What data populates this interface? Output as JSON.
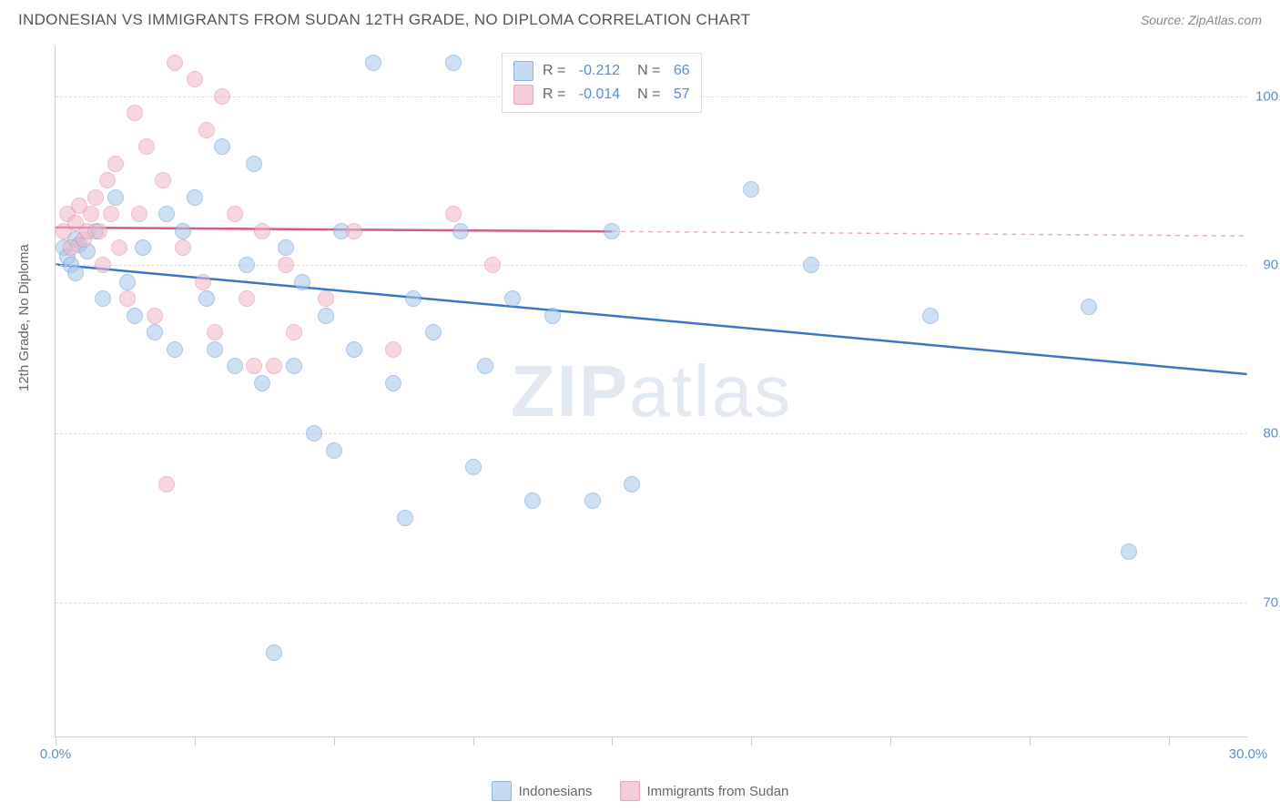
{
  "title": "INDONESIAN VS IMMIGRANTS FROM SUDAN 12TH GRADE, NO DIPLOMA CORRELATION CHART",
  "source": "Source: ZipAtlas.com",
  "y_axis_label": "12th Grade, No Diploma",
  "watermark_bold": "ZIP",
  "watermark_light": "atlas",
  "chart": {
    "type": "scatter",
    "xlim": [
      0,
      30
    ],
    "ylim": [
      62,
      103
    ],
    "x_ticks": [
      0,
      3.5,
      7,
      10.5,
      14,
      17.5,
      21,
      24.5,
      28
    ],
    "x_tick_labels": {
      "0": "0.0%",
      "30": "30.0%"
    },
    "y_gridlines": [
      70,
      80,
      90,
      100
    ],
    "y_tick_labels": {
      "70": "70.0%",
      "80": "80.0%",
      "90": "90.0%",
      "100": "100.0%"
    },
    "background_color": "#ffffff",
    "grid_color": "#dddddd",
    "axis_label_color": "#5b8dd6",
    "series": [
      {
        "name": "Indonesians",
        "color_fill": "#a6c5e8",
        "color_border": "#6b9bd1",
        "swatch_fill": "#c5d9ef",
        "swatch_border": "#8cb3dd",
        "R": "-0.212",
        "N": "66",
        "trend": {
          "x1": 0,
          "y1": 90,
          "x2": 30,
          "y2": 83.5,
          "solid_until_x": 30,
          "color": "#3b78c4"
        },
        "points": [
          [
            0.2,
            91
          ],
          [
            0.3,
            90.5
          ],
          [
            0.5,
            91.5
          ],
          [
            0.4,
            90
          ],
          [
            0.6,
            91.2
          ],
          [
            0.8,
            90.8
          ],
          [
            0.5,
            89.5
          ],
          [
            1.0,
            92
          ],
          [
            1.2,
            88
          ],
          [
            1.5,
            94
          ],
          [
            1.8,
            89
          ],
          [
            2.0,
            87
          ],
          [
            2.2,
            91
          ],
          [
            2.5,
            86
          ],
          [
            2.8,
            93
          ],
          [
            3.0,
            85
          ],
          [
            3.2,
            92
          ],
          [
            3.5,
            94
          ],
          [
            3.8,
            88
          ],
          [
            4.0,
            85
          ],
          [
            4.2,
            97
          ],
          [
            4.5,
            84
          ],
          [
            4.8,
            90
          ],
          [
            5.0,
            96
          ],
          [
            5.2,
            83
          ],
          [
            5.5,
            67
          ],
          [
            5.8,
            91
          ],
          [
            6.0,
            84
          ],
          [
            6.2,
            89
          ],
          [
            6.5,
            80
          ],
          [
            6.8,
            87
          ],
          [
            7.0,
            79
          ],
          [
            7.2,
            92
          ],
          [
            7.5,
            85
          ],
          [
            8.0,
            102
          ],
          [
            8.5,
            83
          ],
          [
            8.8,
            75
          ],
          [
            9.0,
            88
          ],
          [
            9.5,
            86
          ],
          [
            10.0,
            102
          ],
          [
            10.2,
            92
          ],
          [
            10.5,
            78
          ],
          [
            10.8,
            84
          ],
          [
            11.5,
            88
          ],
          [
            12.0,
            76
          ],
          [
            12.5,
            87
          ],
          [
            13.5,
            76
          ],
          [
            14.0,
            92
          ],
          [
            14.5,
            77
          ],
          [
            17.5,
            94.5
          ],
          [
            19.0,
            90
          ],
          [
            22.0,
            87
          ],
          [
            26.0,
            87.5
          ],
          [
            27.0,
            73
          ]
        ]
      },
      {
        "name": "Immigrants from Sudan",
        "color_fill": "#f0b8c8",
        "color_border": "#e08aa5",
        "swatch_fill": "#f5cdd9",
        "swatch_border": "#eaa3b9",
        "R": "-0.014",
        "N": "57",
        "trend": {
          "x1": 0,
          "y1": 92.2,
          "x2": 30,
          "y2": 91.7,
          "solid_until_x": 14,
          "color": "#d65a8a"
        },
        "points": [
          [
            0.2,
            92
          ],
          [
            0.3,
            93
          ],
          [
            0.4,
            91
          ],
          [
            0.5,
            92.5
          ],
          [
            0.6,
            93.5
          ],
          [
            0.7,
            91.5
          ],
          [
            0.8,
            92
          ],
          [
            0.9,
            93
          ],
          [
            1.0,
            94
          ],
          [
            1.1,
            92
          ],
          [
            1.2,
            90
          ],
          [
            1.3,
            95
          ],
          [
            1.4,
            93
          ],
          [
            1.5,
            96
          ],
          [
            1.6,
            91
          ],
          [
            1.8,
            88
          ],
          [
            2.0,
            99
          ],
          [
            2.1,
            93
          ],
          [
            2.3,
            97
          ],
          [
            2.5,
            87
          ],
          [
            2.7,
            95
          ],
          [
            2.8,
            77
          ],
          [
            3.0,
            102
          ],
          [
            3.2,
            91
          ],
          [
            3.5,
            101
          ],
          [
            3.7,
            89
          ],
          [
            3.8,
            98
          ],
          [
            4.0,
            86
          ],
          [
            4.2,
            100
          ],
          [
            4.5,
            93
          ],
          [
            4.8,
            88
          ],
          [
            5.0,
            84
          ],
          [
            5.2,
            92
          ],
          [
            5.5,
            84
          ],
          [
            5.8,
            90
          ],
          [
            6.0,
            86
          ],
          [
            6.8,
            88
          ],
          [
            7.5,
            92
          ],
          [
            8.5,
            85
          ],
          [
            10.0,
            93
          ],
          [
            11.0,
            90
          ]
        ]
      }
    ]
  },
  "legend_bottom": [
    {
      "label": "Indonesians",
      "fill": "#c5d9ef",
      "border": "#8cb3dd"
    },
    {
      "label": "Immigrants from Sudan",
      "fill": "#f5cdd9",
      "border": "#eaa3b9"
    }
  ]
}
